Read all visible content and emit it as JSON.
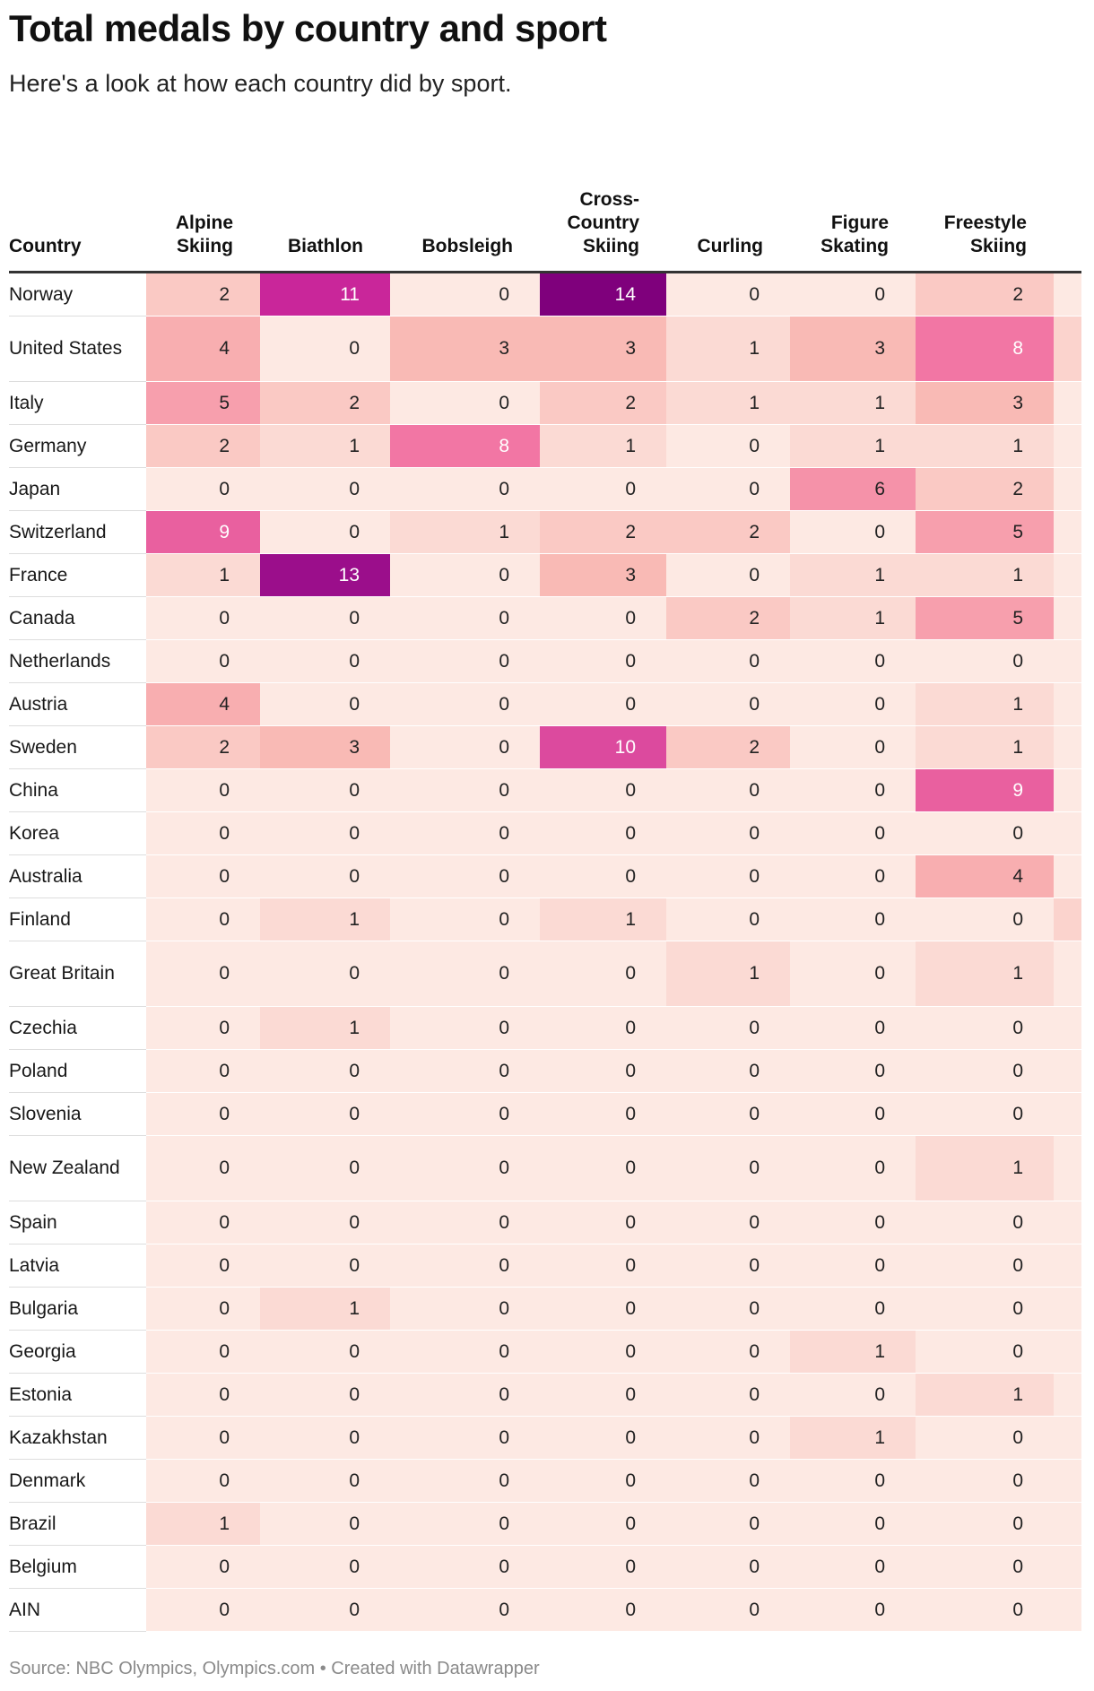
{
  "title": "Total medals by country and sport",
  "subtitle": "Here's a look at how each country did by sport.",
  "source": "Source: NBC Olympics, Olympics.com • Created with Datawrapper",
  "chart_data": {
    "type": "heatmap",
    "title": "Total medals by country and sport",
    "subtitle": "Here's a look at how each country did by sport.",
    "columns": [
      "Country",
      "Alpine Skiing",
      "Biathlon",
      "Bobsleigh",
      "Cross-Country Skiing",
      "Curling",
      "Figure Skating",
      "Freestyle Skiing"
    ],
    "rows": [
      {
        "country": "Norway",
        "values": [
          2,
          11,
          0,
          14,
          0,
          0,
          2
        ]
      },
      {
        "country": "United States",
        "values": [
          4,
          0,
          3,
          3,
          1,
          3,
          8
        ]
      },
      {
        "country": "Italy",
        "values": [
          5,
          2,
          0,
          2,
          1,
          1,
          3
        ]
      },
      {
        "country": "Germany",
        "values": [
          2,
          1,
          8,
          1,
          0,
          1,
          1
        ]
      },
      {
        "country": "Japan",
        "values": [
          0,
          0,
          0,
          0,
          0,
          6,
          2
        ]
      },
      {
        "country": "Switzerland",
        "values": [
          9,
          0,
          1,
          2,
          2,
          0,
          5
        ]
      },
      {
        "country": "France",
        "values": [
          1,
          13,
          0,
          3,
          0,
          1,
          1
        ]
      },
      {
        "country": "Canada",
        "values": [
          0,
          0,
          0,
          0,
          2,
          1,
          5
        ]
      },
      {
        "country": "Netherlands",
        "values": [
          0,
          0,
          0,
          0,
          0,
          0,
          0
        ]
      },
      {
        "country": "Austria",
        "values": [
          4,
          0,
          0,
          0,
          0,
          0,
          1
        ]
      },
      {
        "country": "Sweden",
        "values": [
          2,
          3,
          0,
          10,
          2,
          0,
          1
        ]
      },
      {
        "country": "China",
        "values": [
          0,
          0,
          0,
          0,
          0,
          0,
          9
        ]
      },
      {
        "country": "Korea",
        "values": [
          0,
          0,
          0,
          0,
          0,
          0,
          0
        ]
      },
      {
        "country": "Australia",
        "values": [
          0,
          0,
          0,
          0,
          0,
          0,
          4
        ]
      },
      {
        "country": "Finland",
        "values": [
          0,
          1,
          0,
          1,
          0,
          0,
          0
        ]
      },
      {
        "country": "Great Britain",
        "values": [
          0,
          0,
          0,
          0,
          1,
          0,
          1
        ]
      },
      {
        "country": "Czechia",
        "values": [
          0,
          1,
          0,
          0,
          0,
          0,
          0
        ]
      },
      {
        "country": "Poland",
        "values": [
          0,
          0,
          0,
          0,
          0,
          0,
          0
        ]
      },
      {
        "country": "Slovenia",
        "values": [
          0,
          0,
          0,
          0,
          0,
          0,
          0
        ]
      },
      {
        "country": "New Zealand",
        "values": [
          0,
          0,
          0,
          0,
          0,
          0,
          1
        ]
      },
      {
        "country": "Spain",
        "values": [
          0,
          0,
          0,
          0,
          0,
          0,
          0
        ]
      },
      {
        "country": "Latvia",
        "values": [
          0,
          0,
          0,
          0,
          0,
          0,
          0
        ]
      },
      {
        "country": "Bulgaria",
        "values": [
          0,
          1,
          0,
          0,
          0,
          0,
          0
        ]
      },
      {
        "country": "Georgia",
        "values": [
          0,
          0,
          0,
          0,
          0,
          1,
          0
        ]
      },
      {
        "country": "Estonia",
        "values": [
          0,
          0,
          0,
          0,
          0,
          0,
          1
        ]
      },
      {
        "country": "Kazakhstan",
        "values": [
          0,
          0,
          0,
          0,
          0,
          1,
          0
        ]
      },
      {
        "country": "Denmark",
        "values": [
          0,
          0,
          0,
          0,
          0,
          0,
          0
        ]
      },
      {
        "country": "Brazil",
        "values": [
          1,
          0,
          0,
          0,
          0,
          0,
          0
        ]
      },
      {
        "country": "Belgium",
        "values": [
          0,
          0,
          0,
          0,
          0,
          0,
          0
        ]
      },
      {
        "country": "AIN",
        "values": [
          0,
          0,
          0,
          0,
          0,
          0,
          0
        ]
      }
    ],
    "partial_column_colors": [
      "#fde9e3",
      "#fbd3cd",
      "#fde9e3",
      "#fde9e3",
      "#fde9e3",
      "#fde9e3",
      "#fde9e3",
      "#fde9e3",
      "#fde9e3",
      "#fde9e3",
      "#fde9e3",
      "#fde9e3",
      "#fde9e3",
      "#fde9e3",
      "#fbd3cd",
      "#fde9e3",
      "#fde9e3",
      "#fde9e3",
      "#fde9e3",
      "#fde9e3",
      "#fde9e3",
      "#fde9e3",
      "#fde9e3",
      "#fde9e3",
      "#fde9e3",
      "#fde9e3",
      "#fde9e3",
      "#fde9e3",
      "#fde9e3",
      "#fde9e3"
    ],
    "color_scale": {
      "stops": [
        {
          "value": 0,
          "color": "#fde9e3"
        },
        {
          "value": 1,
          "color": "#fbdad4"
        },
        {
          "value": 2,
          "color": "#fac9c4"
        },
        {
          "value": 3,
          "color": "#f9bab5"
        },
        {
          "value": 4,
          "color": "#f8aeb0"
        },
        {
          "value": 5,
          "color": "#f79fad"
        },
        {
          "value": 6,
          "color": "#f592a9"
        },
        {
          "value": 8,
          "color": "#f276a4"
        },
        {
          "value": 9,
          "color": "#e9609f"
        },
        {
          "value": 10,
          "color": "#dc4a9e"
        },
        {
          "value": 11,
          "color": "#c9269a"
        },
        {
          "value": 13,
          "color": "#9b0e8b"
        },
        {
          "value": 14,
          "color": "#7f007c"
        }
      ],
      "light_text": "#ffffff",
      "dark_text": "#222222",
      "light_text_threshold": 8
    }
  }
}
